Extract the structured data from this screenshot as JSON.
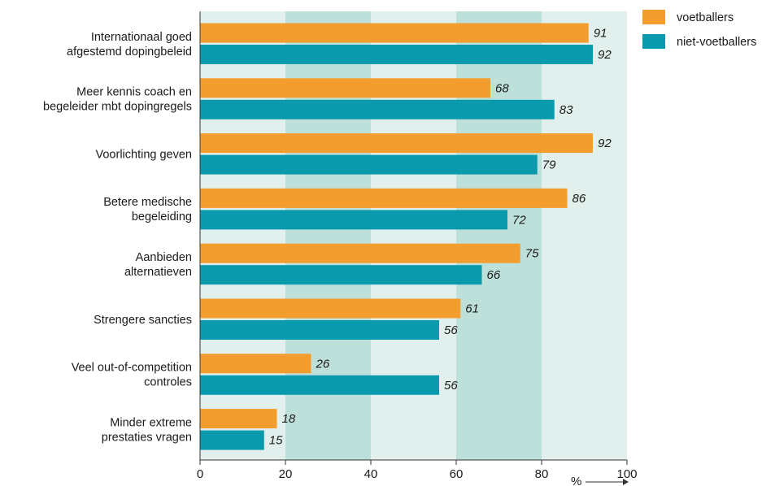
{
  "chart_data": {
    "type": "bar",
    "orientation": "horizontal",
    "categories": [
      [
        "Internationaal goed",
        "afgestemd dopingbeleid"
      ],
      [
        "Meer kennis coach en",
        "begeleider mbt dopingregels"
      ],
      [
        "Voorlichting geven"
      ],
      [
        "Betere medische",
        "begeleiding"
      ],
      [
        "Aanbieden",
        "alternatieven"
      ],
      [
        "Strengere sancties"
      ],
      [
        "Veel out-of-competition",
        "controles"
      ],
      [
        "Minder extreme",
        "prestaties vragen"
      ]
    ],
    "series": [
      {
        "name": "voetballers",
        "color": "#f29d2e",
        "values": [
          91,
          68,
          92,
          86,
          75,
          61,
          26,
          18
        ]
      },
      {
        "name": "niet-voetballers",
        "color": "#0a9aae",
        "values": [
          92,
          83,
          79,
          72,
          66,
          56,
          56,
          15
        ]
      }
    ],
    "xlim": [
      0,
      100
    ],
    "xticks": [
      "0",
      "20",
      "40",
      "60",
      "80",
      "100"
    ],
    "xunit": "%",
    "band_colors": [
      "#e1f0ec",
      "#bde0db"
    ],
    "legend_position": "top-right"
  }
}
